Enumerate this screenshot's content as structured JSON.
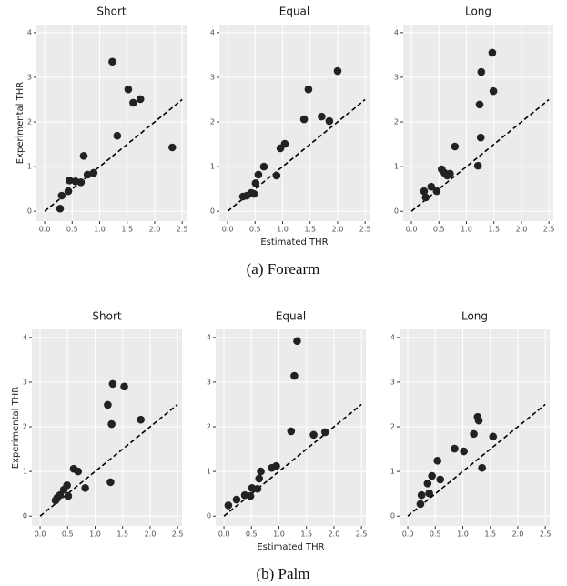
{
  "chart_data": [
    {
      "type": "scatter",
      "title": "Short",
      "y_label": "Experimental THR",
      "color": "#222222",
      "grid": true,
      "identity_line": true,
      "x": [
        0.28,
        0.31,
        0.43,
        0.45,
        0.56,
        0.66,
        0.71,
        0.78,
        0.89,
        1.23,
        1.32,
        1.52,
        1.61,
        1.74,
        2.32
      ],
      "values": [
        0.06,
        0.35,
        0.45,
        0.69,
        0.67,
        0.65,
        1.24,
        0.82,
        0.86,
        3.35,
        1.69,
        2.73,
        2.43,
        2.51,
        1.43
      ],
      "xlim": [
        -0.15,
        2.58
      ],
      "ylim": [
        -0.22,
        4.18
      ],
      "xticks": [
        {
          "value": 0,
          "label": "0.0"
        },
        0.5,
        {
          "value": 1,
          "label": "1.0"
        },
        1.5,
        {
          "value": 2,
          "label": "2.0"
        },
        2.5
      ],
      "yticks": [
        0,
        1,
        2,
        3,
        4
      ]
    },
    {
      "type": "scatter",
      "title": "Equal",
      "x_label": "Estimated THR",
      "color": "#222222",
      "grid": true,
      "identity_line": true,
      "x": [
        0.28,
        0.35,
        0.43,
        0.48,
        0.51,
        0.56,
        0.66,
        0.89,
        0.96,
        1.04,
        1.39,
        1.47,
        1.71,
        1.85,
        2.0
      ],
      "values": [
        0.33,
        0.35,
        0.41,
        0.39,
        0.63,
        0.82,
        1.0,
        0.8,
        1.41,
        1.51,
        2.06,
        2.73,
        2.12,
        2.02,
        3.14
      ],
      "xlim": [
        -0.15,
        2.58
      ],
      "ylim": [
        -0.22,
        4.18
      ],
      "xticks": [
        {
          "value": 0,
          "label": "0.0"
        },
        0.5,
        {
          "value": 1,
          "label": "1.0"
        },
        1.5,
        {
          "value": 2,
          "label": "2.0"
        },
        2.5
      ],
      "yticks": [
        0,
        1,
        2,
        3,
        4
      ]
    },
    {
      "type": "scatter",
      "title": "Long",
      "color": "#222222",
      "grid": true,
      "identity_line": true,
      "x": [
        0.23,
        0.26,
        0.36,
        0.46,
        0.55,
        0.6,
        0.65,
        0.7,
        0.79,
        1.21,
        1.26,
        1.24,
        1.27,
        1.47,
        1.49
      ],
      "values": [
        0.45,
        0.31,
        0.55,
        0.45,
        0.94,
        0.86,
        0.8,
        0.84,
        1.45,
        1.02,
        1.65,
        2.39,
        3.12,
        3.55,
        2.69
      ],
      "xlim": [
        -0.15,
        2.58
      ],
      "ylim": [
        -0.22,
        4.18
      ],
      "xticks": [
        {
          "value": 0,
          "label": "0.0"
        },
        0.5,
        {
          "value": 1,
          "label": "1.0"
        },
        1.5,
        {
          "value": 2,
          "label": "2.0"
        },
        2.5
      ],
      "yticks": [
        0,
        1,
        2,
        3,
        4
      ]
    },
    {
      "type": "scatter",
      "title": "Short",
      "y_label": "Experimental THR",
      "color": "#222222",
      "grid": true,
      "identity_line": true,
      "x": [
        0.28,
        0.31,
        0.36,
        0.43,
        0.49,
        0.51,
        0.61,
        0.69,
        0.82,
        1.23,
        1.28,
        1.3,
        1.32,
        1.53,
        1.83
      ],
      "values": [
        0.35,
        0.41,
        0.47,
        0.59,
        0.69,
        0.45,
        1.06,
        1.0,
        0.63,
        2.49,
        0.76,
        2.06,
        2.96,
        2.9,
        2.16
      ],
      "xlim": [
        -0.15,
        2.58
      ],
      "ylim": [
        -0.22,
        4.18
      ],
      "xticks": [
        {
          "value": 0,
          "label": "0.0"
        },
        0.5,
        {
          "value": 1,
          "label": "1.0"
        },
        1.5,
        {
          "value": 2,
          "label": "2.0"
        },
        2.5
      ],
      "yticks": [
        0,
        1,
        2,
        3,
        4
      ]
    },
    {
      "type": "scatter",
      "title": "Equal",
      "x_label": "Estimated THR",
      "color": "#222222",
      "grid": true,
      "identity_line": true,
      "x": [
        0.08,
        0.23,
        0.38,
        0.48,
        0.51,
        0.61,
        0.64,
        0.67,
        0.87,
        0.95,
        1.22,
        1.28,
        1.33,
        1.63,
        1.84
      ],
      "values": [
        0.24,
        0.37,
        0.47,
        0.45,
        0.63,
        0.61,
        0.84,
        1.0,
        1.08,
        1.12,
        1.9,
        3.14,
        3.92,
        1.82,
        1.88
      ],
      "xlim": [
        -0.15,
        2.58
      ],
      "ylim": [
        -0.22,
        4.18
      ],
      "xticks": [
        {
          "value": 0,
          "label": "0.0"
        },
        0.5,
        {
          "value": 1,
          "label": "1.0"
        },
        1.5,
        {
          "value": 2,
          "label": "2.0"
        },
        2.5
      ],
      "yticks": [
        0,
        1,
        2,
        3,
        4
      ]
    },
    {
      "type": "scatter",
      "title": "Long",
      "color": "#222222",
      "grid": true,
      "identity_line": true,
      "x": [
        0.23,
        0.25,
        0.36,
        0.39,
        0.44,
        0.54,
        0.59,
        0.85,
        1.02,
        1.2,
        1.27,
        1.29,
        1.35,
        1.55
      ],
      "values": [
        0.27,
        0.47,
        0.73,
        0.51,
        0.9,
        1.24,
        0.82,
        1.51,
        1.45,
        1.84,
        2.22,
        2.14,
        1.08,
        1.78
      ],
      "xlim": [
        -0.15,
        2.58
      ],
      "ylim": [
        -0.22,
        4.18
      ],
      "xticks": [
        {
          "value": 0,
          "label": "0.0"
        },
        0.5,
        {
          "value": 1,
          "label": "1.0"
        },
        1.5,
        {
          "value": 2,
          "label": "2.0"
        },
        2.5
      ],
      "yticks": [
        0,
        1,
        2,
        3,
        4
      ]
    }
  ],
  "captions": [
    "(a) Forearm",
    "(b) Palm"
  ]
}
